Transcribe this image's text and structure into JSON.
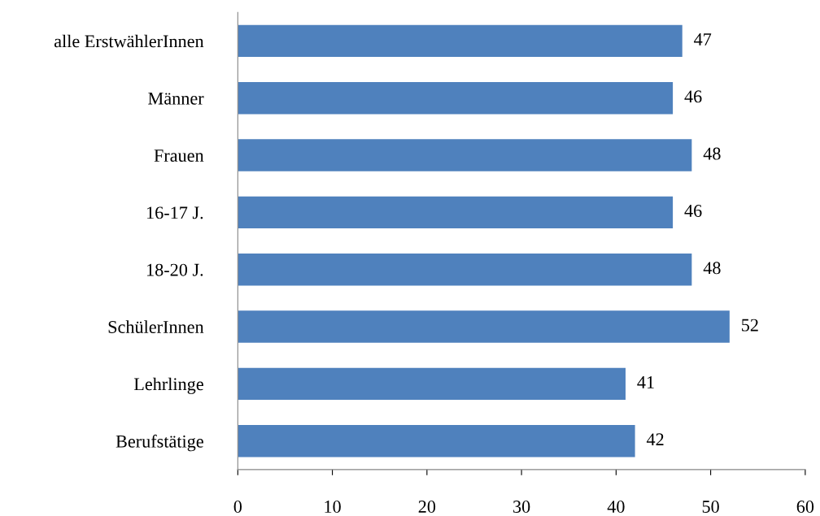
{
  "chart_data": {
    "type": "bar",
    "orientation": "horizontal",
    "categories": [
      "alle ErstwählerInnen",
      "Männer",
      "Frauen",
      "16-17 J.",
      "18-20 J.",
      "SchülerInnen",
      "Lehrlinge",
      "Berufstätige"
    ],
    "values": [
      47,
      46,
      48,
      46,
      48,
      52,
      41,
      42
    ],
    "color": "#4f81bd",
    "xlim": [
      0,
      60
    ],
    "xticks": [
      0,
      10,
      20,
      30,
      40,
      50,
      60
    ],
    "data_labels": true,
    "grid": false,
    "legend": false
  }
}
